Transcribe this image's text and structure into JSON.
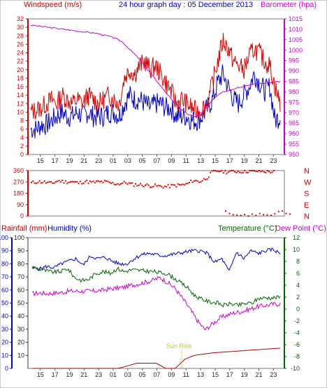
{
  "header": {
    "left_label": "Windspeed (m/s)",
    "title": "24 hour graph day : 05 December 2013",
    "right_label": "Barometer (hpa)"
  },
  "colors": {
    "windspeed": "#dd0000",
    "gust": "#0000cc",
    "barometer": "#cc00cc",
    "direction": "#dd0000",
    "humidity": "#0000cc",
    "temperature": "#006600",
    "dewpoint": "#cc00cc",
    "rainfall": "#aa0000",
    "axis_red": "#cc0000",
    "axis_blue": "#0000cc",
    "axis_magenta": "#cc00cc",
    "axis_green": "#006600",
    "sunrise": "#cccc00"
  },
  "x_labels": [
    "15",
    "17",
    "19",
    "21",
    "23",
    "01",
    "03",
    "05",
    "07",
    "09",
    "11",
    "13",
    "15",
    "17",
    "19",
    "21",
    "23"
  ],
  "chart_data": [
    {
      "type": "line",
      "title": "24 hour graph day : 05 December 2013",
      "x_ticks": [
        "15",
        "17",
        "19",
        "21",
        "23",
        "01",
        "03",
        "05",
        "07",
        "09",
        "11",
        "13",
        "15",
        "17",
        "19",
        "21",
        "23"
      ],
      "ylabel": "Windspeed (m/s)",
      "ylim": [
        0,
        32
      ],
      "y_ticks": [
        0,
        2,
        4,
        6,
        8,
        10,
        12,
        14,
        16,
        18,
        20,
        22,
        24,
        26,
        28,
        30,
        32
      ],
      "y2label": "Barometer (hpa)",
      "y2lim": [
        950,
        1015
      ],
      "y2_ticks": [
        950,
        955,
        960,
        965,
        970,
        975,
        980,
        985,
        990,
        995,
        1000,
        1005,
        1010,
        1015
      ],
      "series": [
        {
          "name": "Windspeed",
          "axis": "left",
          "values": [
            10,
            10.5,
            11,
            12,
            13,
            12,
            14,
            13,
            12,
            13,
            12,
            14,
            13,
            12,
            13,
            14,
            13,
            12,
            18,
            20,
            19,
            21,
            22,
            20,
            21,
            19,
            17,
            15,
            12,
            13,
            12,
            11,
            10,
            11,
            12,
            17,
            22,
            27,
            25,
            22,
            21,
            20,
            23,
            25,
            24,
            22,
            21,
            16,
            12
          ]
        },
        {
          "name": "Gust",
          "axis": "left",
          "values": [
            6,
            6,
            7,
            7,
            8,
            9,
            10,
            9,
            9,
            10,
            9,
            10,
            9,
            9,
            9,
            10,
            10,
            9,
            12,
            14,
            13,
            13,
            12,
            11,
            12,
            12,
            11,
            11,
            9,
            9,
            9,
            8,
            8,
            9,
            11,
            13,
            17,
            19,
            16,
            13,
            12,
            14,
            16,
            19,
            17,
            15,
            16,
            8,
            9
          ]
        },
        {
          "name": "Barometer",
          "axis": "right",
          "values": [
            1012,
            1011.5,
            1011,
            1010.5,
            1010,
            1009.5,
            1009,
            1008.5,
            1008,
            1007,
            1006,
            1004,
            1000,
            996,
            991,
            986,
            981,
            976,
            972,
            969,
            968,
            972,
            977,
            980,
            981,
            982,
            983,
            984,
            984,
            984.5,
            985
          ]
        }
      ]
    },
    {
      "type": "scatter",
      "ylim": [
        0,
        360
      ],
      "y_ticks": [
        0,
        90,
        180,
        270,
        360
      ],
      "y2_ticks": [
        "N",
        "W",
        "S",
        "E",
        "N"
      ],
      "series": [
        {
          "name": "Wind direction",
          "values": [
            262,
            272,
            268,
            258,
            280,
            270,
            272,
            262,
            275,
            265,
            270,
            270,
            258,
            255,
            265,
            250,
            248,
            244,
            240,
            236,
            232,
            240,
            245,
            250,
            282,
            272,
            300,
            355,
            358,
            350,
            355,
            352,
            355,
            358,
            355,
            352,
            350
          ]
        },
        {
          "name": "Wind direction (N)",
          "values": [
            40,
            20,
            10,
            8,
            5,
            12,
            0,
            15,
            5,
            20,
            10,
            8,
            5,
            18,
            35,
            40,
            20,
            15
          ]
        }
      ]
    },
    {
      "type": "line",
      "ylabel": "Rainfall (mm)",
      "ylim": [
        0,
        100
      ],
      "y_ticks": [
        0,
        10,
        20,
        30,
        40,
        50,
        60,
        70,
        80,
        90,
        100
      ],
      "y3label": "Humidity (%)",
      "y3_ticks": [
        10,
        20,
        30,
        40,
        50,
        60,
        70,
        80,
        90,
        100
      ],
      "y2label": "Temperature (°C)",
      "y4label": "Dew Point (°C)",
      "y2lim": [
        -10,
        12
      ],
      "y2_ticks": [
        -10,
        -8,
        -6,
        -4,
        -2,
        0,
        2,
        4,
        6,
        8,
        10,
        12
      ],
      "annotations": [
        "Sun Rise"
      ],
      "series": [
        {
          "name": "Humidity",
          "axis": "humidity",
          "values": [
            77,
            76,
            78,
            77,
            80,
            82,
            84,
            79,
            86,
            84,
            85,
            82,
            80,
            80,
            84,
            87,
            88,
            87,
            86,
            87,
            88,
            89,
            90,
            90,
            88,
            81,
            84,
            74,
            89,
            84,
            90,
            88,
            90,
            91,
            88
          ]
        },
        {
          "name": "Temperature",
          "axis": "temperature",
          "values": [
            7,
            6.8,
            6.4,
            6.2,
            6.3,
            6.8,
            5.3,
            4.8,
            5,
            6,
            6.3,
            6,
            6.8,
            6.3,
            6.6,
            6.5,
            6.4,
            6.3,
            6.1,
            6,
            5.2,
            4.4,
            3.5,
            2.2,
            1.6,
            1.2,
            1.1,
            0.6,
            0.9,
            0.6,
            0.9,
            1,
            1.8,
            1.9,
            1.9,
            2
          ]
        },
        {
          "name": "Dew Point",
          "axis": "temperature",
          "values": [
            2.6,
            2.7,
            2.6,
            2.7,
            2.8,
            3,
            3,
            3,
            3,
            3.1,
            3.3,
            3.5,
            3.6,
            3.9,
            4.2,
            4.5,
            4.8,
            5.3,
            4.5,
            3.5,
            1.8,
            0,
            -2,
            -3.5,
            -2.5,
            -1.5,
            -1,
            -0.6,
            -0.4,
            0,
            0.4,
            0.6,
            0.8,
            0.9
          ]
        },
        {
          "name": "Rainfall",
          "axis": "left",
          "values": [
            0,
            0,
            0,
            0,
            0,
            0,
            0,
            0,
            0,
            0,
            2,
            4,
            4,
            4,
            0,
            0,
            7,
            10,
            11,
            12,
            12.5,
            13,
            13.5,
            14,
            14.5,
            15,
            15.5
          ]
        }
      ]
    }
  ],
  "panel3": {
    "left_label": "Rainfall (mm)",
    "mid_label": "Humidity (%)",
    "temp_label": "Temperature (°C)",
    "dew_label": "Dew Point (°C)",
    "sunrise_label": "Sun Rise"
  }
}
